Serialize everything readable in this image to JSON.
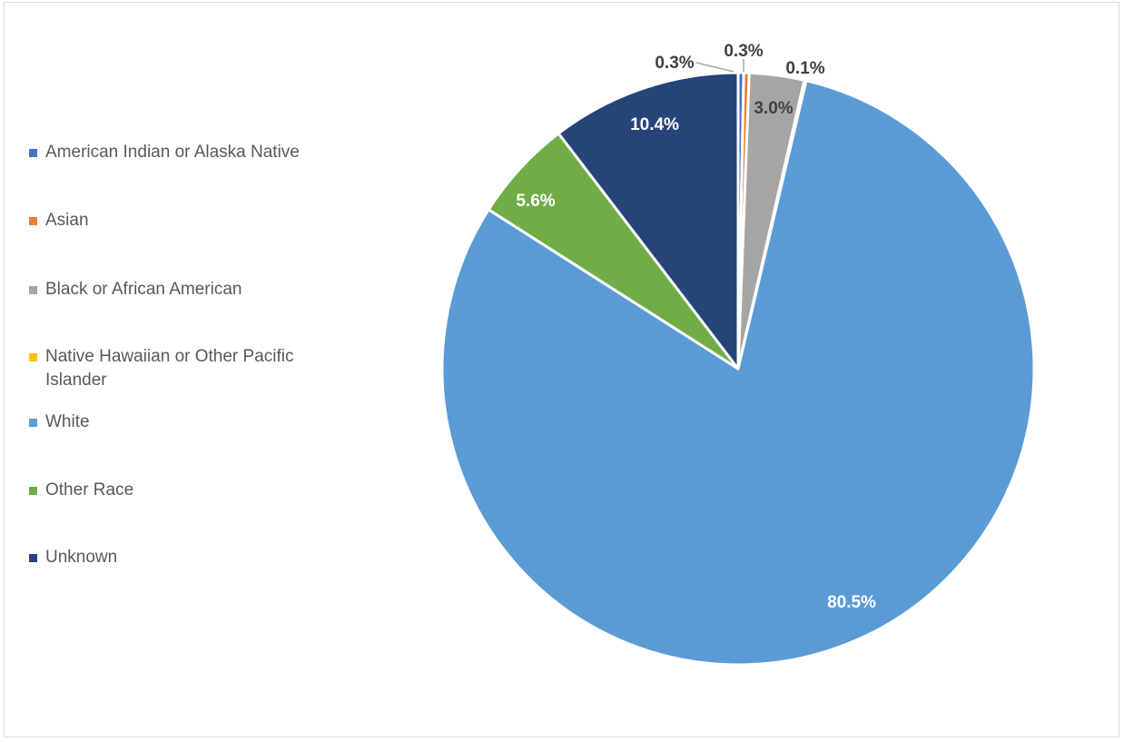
{
  "chart_data": {
    "type": "pie",
    "title": "",
    "legend_position": "left",
    "categories": [
      "American Indian or Alaska Native",
      "Asian",
      "Black or African American",
      "Native Hawaiian or Other Pacific Islander",
      "White",
      "Other Race",
      "Unknown"
    ],
    "values": [
      0.3,
      0.3,
      3.0,
      0.1,
      80.5,
      5.6,
      10.4
    ],
    "labels": [
      "0.3%",
      "0.3%",
      "3.0%",
      "0.1%",
      "80.5%",
      "5.6%",
      "10.4%"
    ],
    "colors": [
      "#4472c4",
      "#ed7d31",
      "#a5a5a5",
      "#ffc000",
      "#5b9bd5",
      "#70ad47",
      "#264478"
    ]
  }
}
